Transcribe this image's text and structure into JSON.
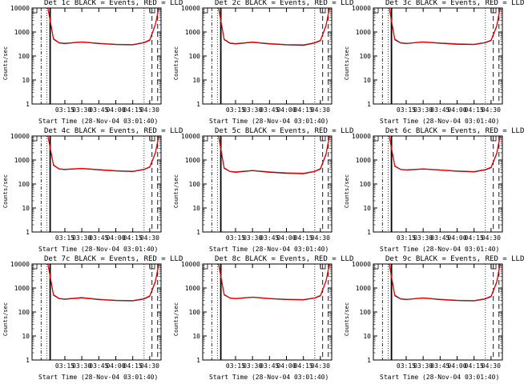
{
  "chart_data": [
    {
      "type": "line",
      "title": "Det 1c BLACK = Events, RED = LLD",
      "xlabel": "Start Time (28-Nov-04 03:01:40)",
      "ylabel": "Counts/sec",
      "x_ticks": [
        "03:15",
        "03:30",
        "03:45",
        "04:00",
        "04:15",
        "04:30"
      ],
      "y_ticks": [
        "1",
        "10",
        "100",
        "1000",
        "10000"
      ],
      "yscale": "log",
      "ylim": [
        1,
        10000
      ],
      "series": [
        {
          "color": "#000000",
          "x": [
            0,
            5,
            10,
            15,
            30,
            45,
            60,
            75,
            85,
            90,
            95,
            98
          ],
          "values": [
            10000,
            500,
            350,
            330,
            380,
            330,
            300,
            290,
            360,
            450,
            2000,
            10000
          ]
        },
        {
          "color": "#ff0000",
          "x": [
            0,
            5,
            10,
            15,
            30,
            45,
            60,
            75,
            85,
            90,
            95,
            98
          ],
          "values": [
            10000,
            520,
            360,
            340,
            390,
            340,
            310,
            300,
            370,
            470,
            2100,
            10000
          ]
        }
      ]
    },
    {
      "type": "line",
      "title": "Det 2c BLACK = Events, RED = LLD",
      "xlabel": "Start Time (28-Nov-04 03:01:40)",
      "ylabel": "Counts/sec",
      "x_ticks": [
        "03:15",
        "03:30",
        "03:45",
        "04:00",
        "04:15",
        "04:30"
      ],
      "y_ticks": [
        "1",
        "10",
        "100",
        "1000",
        "10000"
      ],
      "yscale": "log",
      "ylim": [
        1,
        10000
      ],
      "series": [
        {
          "color": "#000000",
          "x": [
            0,
            5,
            10,
            15,
            30,
            45,
            60,
            75,
            85,
            90,
            95,
            98
          ],
          "values": [
            10000,
            480,
            340,
            320,
            370,
            320,
            290,
            280,
            350,
            430,
            1800,
            10000
          ]
        },
        {
          "color": "#ff0000",
          "x": [
            0,
            5,
            10,
            15,
            30,
            45,
            60,
            75,
            85,
            90,
            95,
            98
          ],
          "values": [
            10000,
            500,
            350,
            330,
            380,
            330,
            300,
            290,
            360,
            450,
            1900,
            10000
          ]
        }
      ]
    },
    {
      "type": "line",
      "title": "Det 3c BLACK = Events, RED = LLD",
      "xlabel": "Start Time (28-Nov-04 03:01:40)",
      "ylabel": "Counts/sec",
      "x_ticks": [
        "03:15",
        "03:30",
        "03:45",
        "04:00",
        "04:15",
        "04:30"
      ],
      "y_ticks": [
        "1",
        "10",
        "100",
        "1000",
        "10000"
      ],
      "yscale": "log",
      "ylim": [
        1,
        10000
      ],
      "series": [
        {
          "color": "#000000",
          "x": [
            0,
            5,
            10,
            15,
            30,
            45,
            60,
            75,
            85,
            90,
            95,
            98
          ],
          "values": [
            10000,
            480,
            350,
            330,
            380,
            340,
            310,
            300,
            360,
            440,
            1700,
            10000
          ]
        },
        {
          "color": "#ff0000",
          "x": [
            0,
            5,
            10,
            15,
            30,
            45,
            60,
            75,
            85,
            90,
            95,
            98
          ],
          "values": [
            10000,
            500,
            360,
            340,
            390,
            350,
            320,
            310,
            370,
            460,
            1800,
            10000
          ]
        }
      ]
    },
    {
      "type": "line",
      "title": "Det 4c BLACK = Events, RED = LLD",
      "xlabel": "Start Time (28-Nov-04 03:01:40)",
      "ylabel": "Counts/sec",
      "x_ticks": [
        "03:15",
        "03:30",
        "03:45",
        "04:00",
        "04:15",
        "04:30"
      ],
      "y_ticks": [
        "1",
        "10",
        "100",
        "1000",
        "10000"
      ],
      "yscale": "log",
      "ylim": [
        1,
        10000
      ],
      "series": [
        {
          "color": "#000000",
          "x": [
            0,
            5,
            10,
            15,
            30,
            45,
            60,
            75,
            85,
            90,
            95,
            98
          ],
          "values": [
            10000,
            600,
            420,
            400,
            440,
            390,
            350,
            330,
            400,
            500,
            1900,
            10000
          ]
        },
        {
          "color": "#ff0000",
          "x": [
            0,
            5,
            10,
            15,
            30,
            45,
            60,
            75,
            85,
            90,
            95,
            98
          ],
          "values": [
            10000,
            620,
            430,
            410,
            450,
            400,
            360,
            340,
            410,
            520,
            2000,
            10000
          ]
        }
      ]
    },
    {
      "type": "line",
      "title": "Det 5c BLACK = Events, RED = LLD",
      "xlabel": "Start Time (28-Nov-04 03:01:40)",
      "ylabel": "Counts/sec",
      "x_ticks": [
        "03:15",
        "03:30",
        "03:45",
        "04:00",
        "04:15",
        "04:30"
      ],
      "y_ticks": [
        "1",
        "10",
        "100",
        "1000",
        "10000"
      ],
      "yscale": "log",
      "ylim": [
        1,
        10000
      ],
      "series": [
        {
          "color": "#000000",
          "x": [
            0,
            5,
            10,
            15,
            30,
            45,
            60,
            75,
            85,
            90,
            95,
            98
          ],
          "values": [
            10000,
            450,
            330,
            310,
            360,
            310,
            280,
            270,
            330,
            420,
            1700,
            10000
          ]
        },
        {
          "color": "#ff0000",
          "x": [
            0,
            5,
            10,
            15,
            30,
            45,
            60,
            75,
            85,
            90,
            95,
            98
          ],
          "values": [
            10000,
            470,
            340,
            320,
            370,
            320,
            290,
            280,
            340,
            440,
            1800,
            10000
          ]
        }
      ]
    },
    {
      "type": "line",
      "title": "Det 6c BLACK = Events, RED = LLD",
      "xlabel": "Start Time (28-Nov-04 03:01:40)",
      "ylabel": "Counts/sec",
      "x_ticks": [
        "03:15",
        "03:30",
        "03:45",
        "04:00",
        "04:15",
        "04:30"
      ],
      "y_ticks": [
        "1",
        "10",
        "100",
        "1000",
        "10000"
      ],
      "yscale": "log",
      "ylim": [
        1,
        10000
      ],
      "series": [
        {
          "color": "#000000",
          "x": [
            0,
            5,
            10,
            15,
            30,
            45,
            60,
            75,
            85,
            90,
            95,
            98
          ],
          "values": [
            10000,
            550,
            400,
            380,
            420,
            380,
            340,
            320,
            390,
            480,
            1800,
            10000
          ]
        },
        {
          "color": "#ff0000",
          "x": [
            0,
            5,
            10,
            15,
            30,
            45,
            60,
            75,
            85,
            90,
            95,
            98
          ],
          "values": [
            10000,
            570,
            410,
            390,
            430,
            390,
            350,
            330,
            400,
            500,
            1900,
            10000
          ]
        }
      ]
    },
    {
      "type": "line",
      "title": "Det 7c BLACK = Events, RED = LLD",
      "xlabel": "Start Time (28-Nov-04 03:01:40)",
      "ylabel": "Counts/sec",
      "x_ticks": [
        "03:15",
        "03:30",
        "03:45",
        "04:00",
        "04:15",
        "04:30"
      ],
      "y_ticks": [
        "1",
        "10",
        "100",
        "1000",
        "10000"
      ],
      "yscale": "log",
      "ylim": [
        1,
        10000
      ],
      "series": [
        {
          "color": "#000000",
          "x": [
            0,
            5,
            10,
            15,
            30,
            45,
            60,
            75,
            85,
            90,
            95,
            98
          ],
          "values": [
            10000,
            500,
            360,
            340,
            390,
            330,
            300,
            290,
            350,
            450,
            1800,
            10000
          ]
        },
        {
          "color": "#ff0000",
          "x": [
            0,
            5,
            10,
            15,
            30,
            45,
            60,
            75,
            85,
            90,
            95,
            98
          ],
          "values": [
            10000,
            520,
            370,
            350,
            400,
            340,
            310,
            300,
            360,
            470,
            1900,
            10000
          ]
        }
      ]
    },
    {
      "type": "line",
      "title": "Det 8c BLACK = Events, RED = LLD",
      "xlabel": "Start Time (28-Nov-04 03:01:40)",
      "ylabel": "Counts/sec",
      "x_ticks": [
        "03:15",
        "03:30",
        "03:45",
        "04:00",
        "04:15",
        "04:30"
      ],
      "y_ticks": [
        "1",
        "10",
        "100",
        "1000",
        "10000"
      ],
      "yscale": "log",
      "ylim": [
        1,
        10000
      ],
      "series": [
        {
          "color": "#000000",
          "x": [
            0,
            5,
            10,
            15,
            30,
            45,
            60,
            75,
            85,
            90,
            95,
            98
          ],
          "values": [
            10000,
            520,
            380,
            360,
            410,
            360,
            330,
            320,
            380,
            470,
            1900,
            10000
          ]
        },
        {
          "color": "#ff0000",
          "x": [
            0,
            5,
            10,
            15,
            30,
            45,
            60,
            75,
            85,
            90,
            95,
            98
          ],
          "values": [
            10000,
            540,
            390,
            370,
            420,
            370,
            340,
            330,
            390,
            490,
            2000,
            10000
          ]
        }
      ]
    },
    {
      "type": "line",
      "title": "Det 9c BLACK = Events, RED = LLD",
      "xlabel": "Start Time (28-Nov-04 03:01:40)",
      "ylabel": "Counts/sec",
      "x_ticks": [
        "03:15",
        "03:30",
        "03:45",
        "04:00",
        "04:15",
        "04:30"
      ],
      "y_ticks": [
        "1",
        "10",
        "100",
        "1000",
        "10000"
      ],
      "yscale": "log",
      "ylim": [
        1,
        10000
      ],
      "series": [
        {
          "color": "#000000",
          "x": [
            0,
            5,
            10,
            15,
            30,
            45,
            60,
            75,
            85,
            90,
            95,
            98
          ],
          "values": [
            10000,
            480,
            350,
            330,
            380,
            330,
            300,
            290,
            350,
            440,
            1700,
            10000
          ]
        },
        {
          "color": "#ff0000",
          "x": [
            0,
            5,
            10,
            15,
            30,
            45,
            60,
            75,
            85,
            90,
            95,
            98
          ],
          "values": [
            10000,
            500,
            360,
            340,
            390,
            340,
            310,
            300,
            360,
            460,
            1800,
            10000
          ]
        }
      ]
    }
  ]
}
